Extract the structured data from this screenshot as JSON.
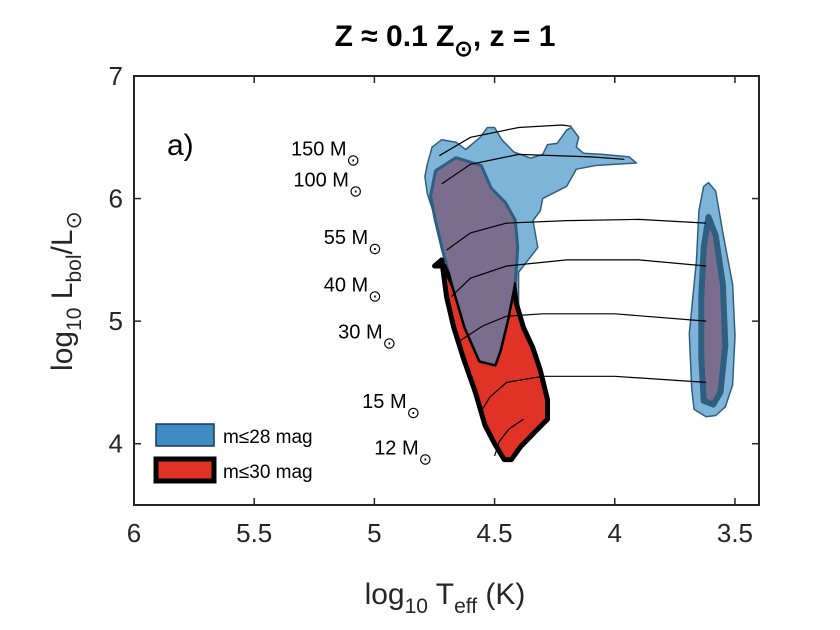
{
  "chart_data": {
    "type": "hr-diagram",
    "title": {
      "main": "Z ≈ 0.1 Z",
      "sub": "⊙",
      "tail": ", z = 1"
    },
    "panel_label": "a)",
    "xlabel": {
      "pre": "log",
      "sub1": "10",
      "mid": " T",
      "sub2": "eff",
      "post": " (K)"
    },
    "ylabel": {
      "pre": "log",
      "sub1": "10",
      "mid": " L",
      "sub2": "bol",
      "mid2": "/L",
      "sub3": "⊙"
    },
    "xlim": [
      6.0,
      3.4
    ],
    "ylim": [
      3.5,
      7.0
    ],
    "x_reversed": true,
    "xticks": [
      {
        "value": 6.0,
        "label": "6"
      },
      {
        "value": 5.5,
        "label": "5.5"
      },
      {
        "value": 5.0,
        "label": "5"
      },
      {
        "value": 4.5,
        "label": "4.5"
      },
      {
        "value": 4.0,
        "label": "4"
      },
      {
        "value": 3.5,
        "label": "3.5"
      }
    ],
    "yticks": [
      {
        "value": 4,
        "label": "4"
      },
      {
        "value": 5,
        "label": "5"
      },
      {
        "value": 6,
        "label": "6"
      },
      {
        "value": 7,
        "label": "7"
      }
    ],
    "mass_labels": [
      {
        "text": "150 M",
        "sun": "⊙",
        "x": 5.06,
        "y": 6.35
      },
      {
        "text": "100 M",
        "sun": "⊙",
        "x": 5.05,
        "y": 6.1
      },
      {
        "text": "55 M",
        "sun": "⊙",
        "x": 4.97,
        "y": 5.63
      },
      {
        "text": "40 M",
        "sun": "⊙",
        "x": 4.97,
        "y": 5.24
      },
      {
        "text": "30 M",
        "sun": "⊙",
        "x": 4.91,
        "y": 4.86
      },
      {
        "text": "15 M",
        "sun": "⊙",
        "x": 4.81,
        "y": 4.29
      },
      {
        "text": "12 M",
        "sun": "⊙",
        "x": 4.76,
        "y": 3.91
      }
    ],
    "tracks": [
      {
        "mass": "150",
        "points": [
          [
            4.73,
            6.35
          ],
          [
            4.6,
            6.5
          ],
          [
            4.4,
            6.58
          ],
          [
            4.22,
            6.6
          ],
          [
            4.18,
            6.59
          ]
        ]
      },
      {
        "mass": "100",
        "points": [
          [
            4.72,
            6.12
          ],
          [
            4.6,
            6.28
          ],
          [
            4.4,
            6.36
          ],
          [
            4.1,
            6.34
          ],
          [
            3.96,
            6.32
          ]
        ]
      },
      {
        "mass": "55",
        "points": [
          [
            4.7,
            5.58
          ],
          [
            4.6,
            5.72
          ],
          [
            4.45,
            5.8
          ],
          [
            4.2,
            5.82
          ],
          [
            3.9,
            5.83
          ],
          [
            3.62,
            5.8
          ]
        ]
      },
      {
        "mass": "40",
        "points": [
          [
            4.68,
            5.2
          ],
          [
            4.6,
            5.35
          ],
          [
            4.45,
            5.45
          ],
          [
            4.2,
            5.5
          ],
          [
            3.9,
            5.5
          ],
          [
            3.62,
            5.45
          ]
        ]
      },
      {
        "mass": "30",
        "points": [
          [
            4.66,
            4.82
          ],
          [
            4.55,
            4.96
          ],
          [
            4.45,
            5.04
          ],
          [
            4.3,
            5.06
          ],
          [
            4.0,
            5.06
          ],
          [
            3.62,
            5.0
          ]
        ]
      },
      {
        "mass": "15",
        "points": [
          [
            4.56,
            4.25
          ],
          [
            4.52,
            4.38
          ],
          [
            4.45,
            4.5
          ],
          [
            4.3,
            4.55
          ],
          [
            4.0,
            4.55
          ],
          [
            3.62,
            4.5
          ]
        ]
      },
      {
        "mass": "12",
        "points": [
          [
            4.5,
            3.9
          ],
          [
            4.48,
            4.02
          ],
          [
            4.44,
            4.12
          ],
          [
            4.38,
            4.2
          ]
        ]
      }
    ],
    "region_blue": {
      "name": "m≤28 mag",
      "fill": "#7db4d8",
      "edge": "#2e5f80",
      "polygons": [
        [
          [
            4.79,
            6.18
          ],
          [
            4.78,
            6.28
          ],
          [
            4.76,
            6.42
          ],
          [
            4.72,
            6.48
          ],
          [
            4.66,
            6.46
          ],
          [
            4.62,
            6.4
          ],
          [
            4.56,
            6.5
          ],
          [
            4.53,
            6.58
          ],
          [
            4.5,
            6.58
          ],
          [
            4.47,
            6.48
          ],
          [
            4.42,
            6.38
          ],
          [
            4.35,
            6.33
          ],
          [
            4.3,
            6.36
          ],
          [
            4.28,
            6.44
          ],
          [
            4.24,
            6.45
          ],
          [
            4.2,
            6.56
          ],
          [
            4.18,
            6.58
          ],
          [
            4.15,
            6.5
          ],
          [
            4.16,
            6.42
          ],
          [
            4.13,
            6.37
          ],
          [
            4.05,
            6.36
          ],
          [
            3.94,
            6.34
          ],
          [
            3.91,
            6.29
          ],
          [
            4.08,
            6.27
          ],
          [
            4.16,
            6.24
          ],
          [
            4.2,
            6.1
          ],
          [
            4.25,
            6.05
          ],
          [
            4.3,
            6.0
          ],
          [
            4.31,
            5.9
          ],
          [
            4.34,
            5.82
          ],
          [
            4.32,
            5.6
          ],
          [
            4.36,
            5.5
          ],
          [
            4.4,
            5.4
          ],
          [
            4.4,
            4.87
          ],
          [
            4.43,
            4.64
          ],
          [
            4.5,
            4.55
          ],
          [
            4.56,
            4.62
          ],
          [
            4.62,
            4.98
          ],
          [
            4.67,
            5.3
          ],
          [
            4.72,
            5.58
          ],
          [
            4.75,
            5.86
          ],
          [
            4.78,
            6.04
          ]
        ],
        [
          [
            3.63,
            6.1
          ],
          [
            3.61,
            6.13
          ],
          [
            3.58,
            6.06
          ],
          [
            3.55,
            5.72
          ],
          [
            3.51,
            5.3
          ],
          [
            3.5,
            4.88
          ],
          [
            3.51,
            4.48
          ],
          [
            3.54,
            4.3
          ],
          [
            3.58,
            4.23
          ],
          [
            3.62,
            4.22
          ],
          [
            3.67,
            4.28
          ],
          [
            3.68,
            4.45
          ],
          [
            3.69,
            4.9
          ],
          [
            3.66,
            5.5
          ],
          [
            3.65,
            5.9
          ]
        ]
      ]
    },
    "region_purple": {
      "fill": "#7b6d8d",
      "edge": "#2e5f80",
      "polygons": [
        [
          [
            4.76,
            6.02
          ],
          [
            4.74,
            6.22
          ],
          [
            4.66,
            6.32
          ],
          [
            4.56,
            6.26
          ],
          [
            4.52,
            6.08
          ],
          [
            4.46,
            5.96
          ],
          [
            4.42,
            5.82
          ],
          [
            4.41,
            5.6
          ],
          [
            4.42,
            5.3
          ],
          [
            4.45,
            5.0
          ],
          [
            4.48,
            4.76
          ],
          [
            4.5,
            4.65
          ],
          [
            4.56,
            4.68
          ],
          [
            4.62,
            4.95
          ],
          [
            4.67,
            5.28
          ],
          [
            4.71,
            5.58
          ],
          [
            4.74,
            5.82
          ]
        ],
        [
          [
            3.61,
            5.85
          ],
          [
            3.58,
            5.7
          ],
          [
            3.55,
            5.3
          ],
          [
            3.54,
            4.8
          ],
          [
            3.56,
            4.42
          ],
          [
            3.59,
            4.32
          ],
          [
            3.63,
            4.35
          ],
          [
            3.64,
            4.7
          ],
          [
            3.64,
            5.2
          ],
          [
            3.63,
            5.6
          ]
        ]
      ]
    },
    "region_red": {
      "name": "m≤30 mag",
      "fill": "#e03226",
      "edge": "#000000",
      "polygons": [
        [
          [
            4.75,
            5.45
          ],
          [
            4.72,
            5.5
          ],
          [
            4.7,
            5.2
          ],
          [
            4.67,
            4.95
          ],
          [
            4.63,
            4.7
          ],
          [
            4.58,
            4.42
          ],
          [
            4.54,
            4.15
          ],
          [
            4.5,
            4.0
          ],
          [
            4.46,
            3.87
          ],
          [
            4.43,
            3.87
          ],
          [
            4.39,
            3.98
          ],
          [
            4.33,
            4.1
          ],
          [
            4.28,
            4.2
          ],
          [
            4.28,
            4.36
          ],
          [
            4.31,
            4.6
          ],
          [
            4.34,
            4.78
          ],
          [
            4.38,
            4.95
          ],
          [
            4.41,
            5.15
          ],
          [
            4.42,
            5.3
          ],
          [
            4.45,
            5.0
          ],
          [
            4.48,
            4.76
          ],
          [
            4.5,
            4.65
          ],
          [
            4.56,
            4.68
          ],
          [
            4.62,
            4.95
          ],
          [
            4.67,
            5.28
          ],
          [
            4.71,
            5.45
          ]
        ]
      ]
    },
    "legend": [
      {
        "label": "m≤28 mag",
        "fill": "#3d8dc4",
        "edge": "#1a3a55"
      },
      {
        "label": "m≤30 mag",
        "fill": "#e03226",
        "edge": "#000000"
      }
    ]
  }
}
